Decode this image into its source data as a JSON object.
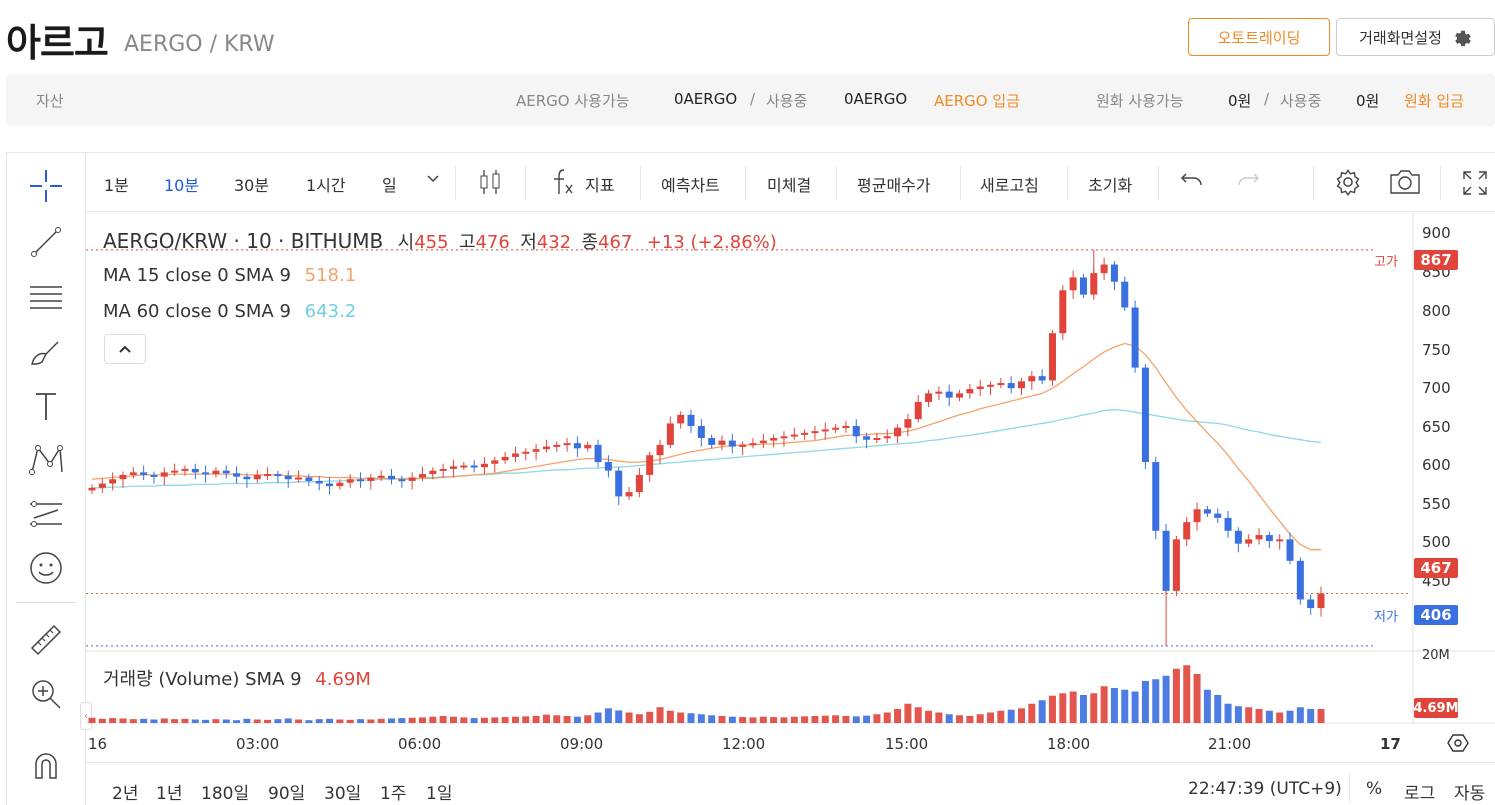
{
  "header": {
    "title": "아르고",
    "pair": "AERGO / KRW",
    "auto_trading": "오토트레이딩",
    "screen_settings": "거래화면설정"
  },
  "assets": {
    "label": "자산",
    "aergo_available_label": "AERGO 사용가능",
    "aergo_available": "0AERGO",
    "sep1": "/",
    "in_use_label1": "사용중",
    "aergo_in_use": "0AERGO",
    "aergo_deposit": "AERGO 입금",
    "krw_available_label": "원화 사용가능",
    "krw_available": "0원",
    "sep2": "/",
    "in_use_label2": "사용중",
    "krw_in_use": "0원",
    "krw_deposit": "원화 입금"
  },
  "toolbar": {
    "intervals": [
      "1분",
      "10분",
      "30분",
      "1시간",
      "일"
    ],
    "active_interval": "10분",
    "indicators": "지표",
    "prediction": "예측차트",
    "unfilled": "미체결",
    "avg_price": "평균매수가",
    "refresh": "새로고침",
    "reset": "초기화"
  },
  "legend": {
    "symbol": "AERGO/KRW · 10 · BITHUMB",
    "open_label": "시",
    "open": "455",
    "high_label": "고",
    "high": "476",
    "low_label": "저",
    "low": "432",
    "close_label": "종",
    "close": "467",
    "change": "+13 (+2.86%)",
    "ma15_label": "MA 15 close 0 SMA 9",
    "ma15_value": "518.1",
    "ma60_label": "MA 60 close 0 SMA 9",
    "ma60_value": "643.2",
    "volume_label": "거래량 (Volume)  SMA 9",
    "volume_value": "4.69M"
  },
  "price_axis": {
    "ticks": [
      "900",
      "850",
      "800",
      "750",
      "700",
      "650",
      "600",
      "550",
      "500",
      "450"
    ],
    "high_tag_label": "고가",
    "high_tag": "867",
    "current_tag": "467",
    "low_tag_label": "저가",
    "low_tag": "406",
    "volume_tick": "20M",
    "volume_tag": "4.69M"
  },
  "time_axis": [
    "16",
    "03:00",
    "06:00",
    "09:00",
    "12:00",
    "15:00",
    "18:00",
    "21:00",
    "17"
  ],
  "range_buttons": [
    "2년",
    "1년",
    "180일",
    "90일",
    "30일",
    "1주",
    "1일"
  ],
  "clock": "22:47:39 (UTC+9)",
  "scale_buttons": {
    "percent": "%",
    "log": "로그",
    "auto": "자동"
  },
  "colors": {
    "up": "#e0443a",
    "down": "#3a6fe0",
    "ma15": "#f5a36b",
    "ma60": "#8fd8e6",
    "accent": "#f08a24"
  },
  "chart_data": {
    "type": "candlestick",
    "ylim": [
      400,
      910
    ],
    "closes": [
      590,
      595,
      600,
      605,
      608,
      605,
      603,
      608,
      610,
      612,
      608,
      606,
      610,
      607,
      603,
      600,
      605,
      606,
      604,
      600,
      602,
      598,
      595,
      592,
      596,
      600,
      598,
      602,
      604,
      600,
      598,
      602,
      606,
      610,
      612,
      615,
      616,
      614,
      618,
      622,
      626,
      630,
      632,
      635,
      638,
      640,
      642,
      636,
      640,
      620,
      610,
      580,
      585,
      605,
      628,
      640,
      665,
      675,
      662,
      648,
      640,
      645,
      638,
      640,
      642,
      645,
      648,
      650,
      652,
      654,
      656,
      658,
      660,
      662,
      650,
      646,
      648,
      650,
      660,
      670,
      690,
      700,
      702,
      695,
      700,
      705,
      708,
      710,
      712,
      706,
      714,
      720,
      715,
      770,
      820,
      835,
      815,
      840,
      850,
      830,
      800,
      730,
      620,
      540,
      470,
      530,
      550,
      565,
      560,
      555,
      540,
      525,
      530,
      535,
      528,
      530,
      505,
      460,
      450,
      467
    ],
    "ma15": [
      600,
      601,
      602,
      603,
      604,
      605,
      605,
      605,
      606,
      606,
      606,
      606,
      606,
      606,
      606,
      605,
      605,
      605,
      605,
      604,
      604,
      603,
      603,
      602,
      602,
      602,
      601,
      601,
      601,
      601,
      600,
      600,
      601,
      601,
      602,
      603,
      604,
      605,
      606,
      607,
      609,
      611,
      613,
      615,
      617,
      619,
      621,
      623,
      624,
      624,
      623,
      621,
      620,
      620,
      621,
      623,
      626,
      629,
      632,
      634,
      636,
      638,
      639,
      640,
      640,
      641,
      641,
      642,
      643,
      644,
      645,
      647,
      649,
      651,
      652,
      652,
      653,
      653,
      654,
      656,
      659,
      663,
      667,
      671,
      675,
      678,
      682,
      685,
      688,
      691,
      694,
      697,
      700,
      706,
      714,
      723,
      731,
      740,
      748,
      754,
      758,
      755,
      745,
      730,
      712,
      695,
      680,
      667,
      654,
      642,
      628,
      612,
      598,
      582,
      566,
      551,
      536,
      524,
      518,
      518
    ],
    "ma60": [
      590,
      590,
      591,
      591,
      592,
      592,
      592,
      593,
      593,
      593,
      594,
      594,
      594,
      595,
      595,
      595,
      595,
      596,
      596,
      596,
      597,
      597,
      597,
      598,
      598,
      599,
      599,
      599,
      600,
      600,
      601,
      601,
      602,
      602,
      603,
      603,
      604,
      605,
      605,
      606,
      607,
      607,
      608,
      609,
      610,
      611,
      611,
      612,
      613,
      613,
      614,
      614,
      615,
      616,
      617,
      618,
      619,
      620,
      621,
      622,
      623,
      624,
      625,
      626,
      627,
      628,
      629,
      630,
      631,
      632,
      633,
      634,
      635,
      636,
      637,
      638,
      639,
      640,
      641,
      642,
      643,
      645,
      646,
      648,
      650,
      651,
      653,
      655,
      657,
      659,
      661,
      663,
      665,
      667,
      670,
      672,
      675,
      677,
      680,
      681,
      680,
      678,
      676,
      674,
      672,
      670,
      668,
      667,
      666,
      665,
      663,
      660,
      657,
      655,
      652,
      650,
      648,
      646,
      644,
      643
    ],
    "volumes": [
      1.5,
      1.2,
      1.4,
      1.3,
      1.1,
      1.2,
      1.0,
      1.3,
      1.1,
      1.2,
      1.0,
      0.9,
      1.1,
      1.0,
      0.8,
      1.2,
      1.0,
      0.9,
      1.1,
      1.3,
      1.0,
      0.8,
      1.1,
      1.2,
      1.0,
      0.9,
      1.1,
      1.0,
      1.2,
      1.3,
      1.4,
      1.5,
      1.6,
      1.8,
      2.0,
      1.8,
      1.6,
      1.4,
      1.5,
      1.6,
      1.7,
      1.8,
      1.9,
      2.0,
      2.4,
      2.2,
      2.0,
      1.8,
      2.2,
      3.0,
      4.2,
      3.6,
      3.0,
      2.5,
      3.2,
      4.5,
      3.5,
      3.0,
      2.8,
      2.5,
      2.2,
      2.0,
      1.8,
      1.7,
      1.6,
      1.8,
      1.7,
      1.6,
      1.8,
      1.9,
      2.0,
      2.1,
      2.2,
      2.0,
      1.9,
      2.1,
      2.5,
      3.0,
      4.0,
      5.5,
      4.5,
      3.5,
      3.0,
      2.5,
      2.2,
      2.0,
      2.5,
      3.0,
      3.5,
      3.8,
      4.2,
      5.5,
      6.5,
      7.8,
      8.5,
      9.0,
      8.0,
      8.5,
      10.5,
      10.0,
      9.5,
      9.0,
      12.0,
      12.5,
      13.5,
      15.5,
      16.5,
      14.0,
      9.5,
      8.0,
      5.5,
      4.8,
      4.5,
      4.0,
      3.5,
      3.0,
      3.5,
      4.5,
      4.0,
      4.0
    ],
    "volume_max": 20
  }
}
